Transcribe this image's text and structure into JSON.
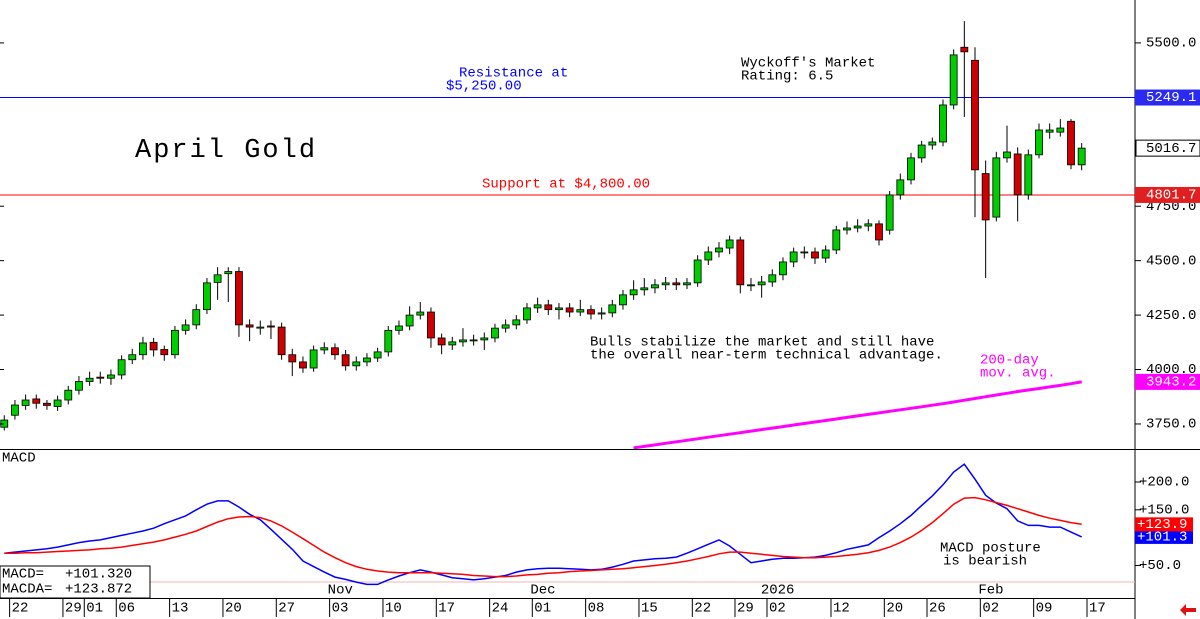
{
  "chart_data": {
    "type": "candlestick",
    "title": "April Gold",
    "up_color": "#00cc00",
    "down_color": "#cc0000",
    "xlim": [
      -0.4,
      106
    ],
    "ylim": [
      3635,
      5697
    ],
    "yticks": [
      {
        "value": 5500,
        "label": "5500.0"
      },
      {
        "value": 4750,
        "label": "4750.0"
      },
      {
        "value": 4500,
        "label": "4500.0"
      },
      {
        "value": 4250,
        "label": "4250.0"
      },
      {
        "value": 4000,
        "label": "4000.0"
      },
      {
        "value": 3750,
        "label": "3750.0"
      }
    ],
    "xticks": [
      {
        "value": 0.5,
        "label": "22"
      },
      {
        "value": 5.5,
        "label": "29"
      },
      {
        "value": 7.5,
        "label": "01"
      },
      {
        "value": 10.5,
        "label": "06"
      },
      {
        "value": 15.5,
        "label": "13"
      },
      {
        "value": 20.5,
        "label": "20"
      },
      {
        "value": 25.5,
        "label": "27"
      },
      {
        "value": 30.5,
        "label": "03"
      },
      {
        "value": 35.5,
        "label": "10"
      },
      {
        "value": 40.5,
        "label": "17"
      },
      {
        "value": 45.5,
        "label": "24"
      },
      {
        "value": 49.5,
        "label": "01"
      },
      {
        "value": 54.5,
        "label": "08"
      },
      {
        "value": 59.5,
        "label": "15"
      },
      {
        "value": 64.5,
        "label": "22"
      },
      {
        "value": 68.5,
        "label": "29"
      },
      {
        "value": 71.5,
        "label": "02"
      },
      {
        "value": 77.5,
        "label": "12"
      },
      {
        "value": 82.5,
        "label": "20"
      },
      {
        "value": 86.5,
        "label": "26"
      },
      {
        "value": 91.5,
        "label": "02"
      },
      {
        "value": 96.5,
        "label": "09"
      },
      {
        "value": 101.5,
        "label": "17"
      }
    ],
    "month_labels": [
      {
        "value": 31.5,
        "label": "Nov"
      },
      {
        "value": 50.5,
        "label": "Dec"
      },
      {
        "value": 72.5,
        "label": "2026"
      },
      {
        "value": 92.5,
        "label": "Feb"
      }
    ],
    "open": [
      3735,
      3790,
      3835,
      3865,
      3845,
      3830,
      3860,
      3905,
      3945,
      3965,
      3960,
      3975,
      4045,
      4068,
      4125,
      4092,
      4068,
      4180,
      4205,
      4275,
      4400,
      4440,
      4450,
      4205,
      4190,
      4200,
      4195,
      4068,
      4035,
      4007,
      4090,
      4100,
      4068,
      4017,
      4035,
      4053,
      4081,
      4180,
      4200,
      4250,
      4264,
      4145,
      4113,
      4127,
      4136,
      4136,
      4145,
      4190,
      4205,
      4228,
      4283,
      4297,
      4275,
      4283,
      4264,
      4275,
      4255,
      4260,
      4297,
      4343,
      4366,
      4375,
      4389,
      4398,
      4389,
      4398,
      4503,
      4540,
      4558,
      4595,
      4389,
      4389,
      4402,
      4435,
      4494,
      4540,
      4540,
      4512,
      4549,
      4641,
      4650,
      4659,
      4669,
      4640,
      4802,
      4871,
      4972,
      5031,
      5045,
      5215,
      5480,
      5420,
      4900,
      4700,
      4972,
      4990,
      4802,
      4986,
      5090,
      5090,
      5140,
      4940
    ],
    "high": [
      3790,
      3860,
      3885,
      3885,
      3860,
      3880,
      3925,
      3970,
      3990,
      3990,
      4000,
      4065,
      4095,
      4150,
      4145,
      4110,
      4200,
      4230,
      4300,
      4420,
      4470,
      4470,
      4470,
      4230,
      4225,
      4225,
      4215,
      4095,
      4060,
      4110,
      4125,
      4120,
      4090,
      4060,
      4075,
      4100,
      4200,
      4225,
      4290,
      4310,
      4285,
      4165,
      4150,
      4190,
      4160,
      4170,
      4210,
      4230,
      4250,
      4305,
      4330,
      4320,
      4305,
      4305,
      4320,
      4295,
      4285,
      4320,
      4365,
      4410,
      4420,
      4415,
      4425,
      4420,
      4420,
      4525,
      4565,
      4585,
      4615,
      4610,
      4420,
      4430,
      4460,
      4515,
      4560,
      4565,
      4560,
      4570,
      4660,
      4680,
      4690,
      4690,
      4685,
      4820,
      4900,
      4995,
      5050,
      5065,
      5240,
      5470,
      5600,
      5480,
      4960,
      5000,
      5120,
      5020,
      5010,
      5130,
      5130,
      5150,
      5150,
      5040
    ],
    "low": [
      3720,
      3770,
      3815,
      3820,
      3815,
      3810,
      3840,
      3885,
      3925,
      3935,
      3930,
      3955,
      4025,
      4045,
      4060,
      4040,
      4050,
      4160,
      4185,
      4255,
      4320,
      4310,
      4150,
      4130,
      4160,
      4140,
      4045,
      3970,
      3985,
      3990,
      4070,
      4045,
      3995,
      3995,
      4015,
      4035,
      4060,
      4160,
      4180,
      4230,
      4100,
      4070,
      4090,
      4105,
      4110,
      4090,
      4125,
      4170,
      4185,
      4210,
      4260,
      4250,
      4230,
      4240,
      4245,
      4230,
      4230,
      4240,
      4275,
      4320,
      4340,
      4350,
      4365,
      4365,
      4370,
      4380,
      4480,
      4515,
      4530,
      4350,
      4360,
      4330,
      4380,
      4410,
      4470,
      4510,
      4485,
      4490,
      4530,
      4620,
      4630,
      4635,
      4570,
      4620,
      4780,
      4850,
      4950,
      5010,
      5025,
      5195,
      5160,
      4700,
      4420,
      4680,
      4950,
      4680,
      4780,
      4970,
      5060,
      5070,
      4920,
      4915
    ],
    "close": [
      3768,
      3837,
      3860,
      3845,
      3835,
      3860,
      3905,
      3945,
      3960,
      3960,
      3975,
      4045,
      4068,
      4122,
      4090,
      4068,
      4180,
      4205,
      4275,
      4398,
      4435,
      4450,
      4205,
      4195,
      4195,
      4195,
      4068,
      4035,
      4007,
      4090,
      4100,
      4068,
      4017,
      4035,
      4053,
      4081,
      4180,
      4200,
      4250,
      4264,
      4145,
      4113,
      4127,
      4136,
      4136,
      4145,
      4190,
      4205,
      4228,
      4283,
      4297,
      4275,
      4283,
      4264,
      4275,
      4255,
      4260,
      4297,
      4343,
      4366,
      4375,
      4389,
      4398,
      4389,
      4398,
      4503,
      4540,
      4558,
      4595,
      4389,
      4389,
      4402,
      4435,
      4494,
      4540,
      4540,
      4512,
      4549,
      4641,
      4650,
      4659,
      4669,
      4595,
      4802,
      4871,
      4972,
      5031,
      5045,
      5215,
      5445,
      5459,
      4917,
      4687,
      4972,
      4999,
      4802,
      4986,
      5100,
      5100,
      5109,
      4940,
      5016.7
    ],
    "moving_average": {
      "color": "#ff00ff",
      "label_lines": [
        "200-day",
        "mov. avg."
      ],
      "values": [
        null,
        null,
        null,
        null,
        null,
        null,
        null,
        null,
        null,
        null,
        null,
        null,
        null,
        null,
        null,
        null,
        null,
        null,
        null,
        null,
        null,
        null,
        null,
        null,
        null,
        null,
        null,
        null,
        null,
        null,
        null,
        null,
        null,
        null,
        null,
        null,
        null,
        null,
        null,
        null,
        null,
        null,
        null,
        null,
        null,
        null,
        null,
        null,
        null,
        null,
        null,
        null,
        null,
        null,
        null,
        null,
        null,
        null,
        null,
        3640,
        3647,
        3654,
        3661,
        3668,
        3675,
        3682,
        3689,
        3696,
        3703,
        3710,
        3717,
        3724,
        3731,
        3738,
        3745,
        3752,
        3759,
        3766,
        3773,
        3780,
        3787,
        3794,
        3801,
        3808,
        3815,
        3822,
        3829,
        3836,
        3843,
        3851,
        3859,
        3867,
        3875,
        3883,
        3891,
        3899,
        3906,
        3913,
        3920,
        3927,
        3935,
        3943.2
      ]
    },
    "levels": [
      {
        "value": 5249.1,
        "color": "#0000ff",
        "tag_color": "#2a2af0",
        "text": [
          "Resistance at",
          "$5,250.00"
        ]
      },
      {
        "value": 4801.7,
        "color": "#ff0000",
        "tag_color": "#e02020",
        "text": [
          "Support at $4,800.00"
        ]
      }
    ],
    "rating": [
      "Wyckoff's Market",
      "Rating: 6.5"
    ],
    "comment": [
      "Bulls stabilize the market and still have",
      "the overall near-term technical advantage."
    ],
    "macd": {
      "title": "MACD",
      "ylim": [
        -8.5,
        257.5
      ],
      "yticks": [
        {
          "value": 200,
          "label": "+200.0"
        },
        {
          "value": 150,
          "label": "+150.0"
        },
        {
          "value": 50,
          "label": "+50.0"
        }
      ],
      "comment": [
        "MACD posture",
        "is bearish"
      ],
      "series": [
        {
          "name": "MACD=",
          "color": "#0000ff",
          "readout": "+101.320",
          "tag_label": "+101.3",
          "values": [
            72,
            74,
            76,
            78,
            80,
            83,
            87,
            91,
            94,
            96,
            100,
            104,
            108,
            112,
            117,
            125,
            132,
            139,
            150,
            160,
            166,
            166,
            155,
            142,
            132,
            115,
            97,
            79,
            58,
            48,
            38,
            29,
            25,
            20,
            16,
            16,
            24,
            31,
            37,
            42,
            38,
            33,
            28,
            26,
            24,
            26,
            29,
            32,
            38,
            42,
            44,
            45,
            45,
            44,
            43,
            42,
            43,
            47,
            52,
            58,
            60,
            62,
            63,
            65,
            72,
            80,
            88,
            96,
            85,
            70,
            55,
            58,
            61,
            63,
            63,
            64,
            65,
            68,
            73,
            79,
            83,
            87,
            100,
            112,
            125,
            140,
            158,
            175,
            195,
            218,
            232,
            205,
            176,
            162,
            152,
            130,
            122,
            122,
            119,
            119,
            110,
            101.32
          ]
        },
        {
          "name": "MACDA=",
          "color": "#ff0000",
          "readout": "+123.872",
          "tag_label": "+123.9",
          "values": [
            72,
            72,
            73,
            73,
            74,
            75,
            76,
            77,
            78,
            80,
            81,
            83,
            86,
            89,
            92,
            96,
            101,
            106,
            112,
            120,
            128,
            134,
            137,
            138,
            136,
            130,
            121,
            110,
            98,
            86,
            74,
            64,
            55,
            48,
            43,
            40,
            38,
            37,
            37,
            37,
            37,
            36,
            35,
            34,
            32,
            31,
            30,
            30,
            31,
            33,
            34,
            36,
            37,
            39,
            40,
            41,
            42,
            43,
            44,
            46,
            48,
            50,
            52,
            55,
            58,
            62,
            66,
            71,
            74,
            74,
            72,
            70,
            68,
            66,
            65,
            64,
            64,
            65,
            66,
            68,
            70,
            73,
            77,
            83,
            91,
            101,
            113,
            127,
            143,
            160,
            171,
            172,
            168,
            163,
            158,
            152,
            146,
            140,
            135,
            131,
            127,
            123.872
          ]
        }
      ]
    }
  }
}
